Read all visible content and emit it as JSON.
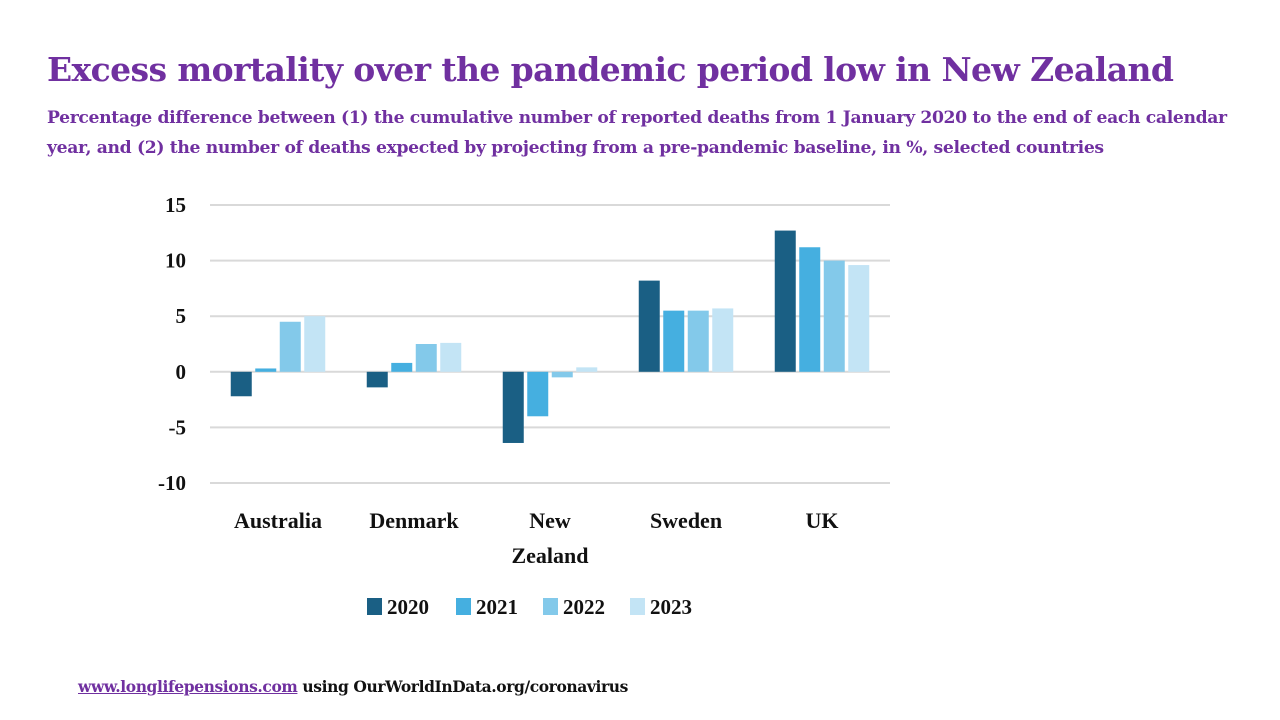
{
  "title": "Excess mortality over the pandemic period low in New Zealand",
  "subtitle": "Percentage difference between (1) the cumulative number of reported deaths from 1 January 2020 to the end of each calendar year, and (2) the number of deaths expected by projecting from a pre-pandemic baseline, in %, selected countries",
  "footer": {
    "link_text": "www.longlifepensions.com",
    "source_text": " using OurWorldInData.org/coronavirus"
  },
  "colors": {
    "title": "#7030a0",
    "2020": "#1a5f84",
    "2021": "#45afe0",
    "2022": "#83c9ea",
    "2023": "#c3e4f5",
    "grid": "#d9d9d9"
  },
  "chart_data": {
    "type": "bar",
    "title": "Excess mortality over the pandemic period low in New Zealand",
    "xlabel": "",
    "ylabel": "",
    "categories": [
      "Australia",
      "Denmark",
      "New Zealand",
      "Sweden",
      "UK"
    ],
    "category_lines": [
      [
        "Australia"
      ],
      [
        "Denmark"
      ],
      [
        "New",
        "Zealand"
      ],
      [
        "Sweden"
      ],
      [
        "UK"
      ]
    ],
    "series": [
      {
        "name": "2020",
        "values": [
          -2.2,
          -1.4,
          -6.4,
          8.2,
          12.7
        ]
      },
      {
        "name": "2021",
        "values": [
          0.3,
          0.8,
          -4.0,
          5.5,
          11.2
        ]
      },
      {
        "name": "2022",
        "values": [
          4.5,
          2.5,
          -0.5,
          5.5,
          10.0
        ]
      },
      {
        "name": "2023",
        "values": [
          5.0,
          2.6,
          0.4,
          5.7,
          9.6
        ]
      }
    ],
    "ylim": [
      -10,
      15
    ],
    "yticks": [
      15,
      10,
      5,
      0,
      -5,
      -10
    ],
    "ytick_labels": [
      "15",
      "10",
      "5",
      "0",
      "-5",
      "-10"
    ],
    "grid": true,
    "legend": {
      "position": "bottom",
      "entries": [
        "2020",
        "2021",
        "2022",
        "2023"
      ]
    }
  }
}
